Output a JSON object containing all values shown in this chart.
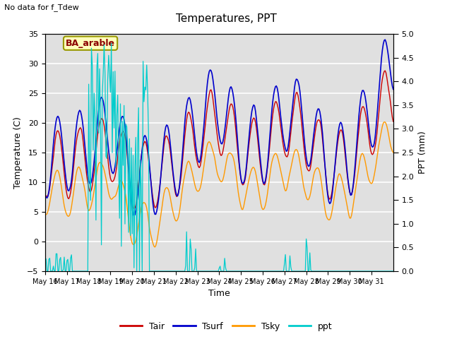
{
  "title": "Temperatures, PPT",
  "subtitle": "No data for f_Tdew",
  "site_label": "BA_arable",
  "xlabel": "Time",
  "ylabel_left": "Temperature (C)",
  "ylabel_right": "PPT (mm)",
  "ylim_left": [
    -5,
    35
  ],
  "ylim_right": [
    0.0,
    5.0
  ],
  "yticks_left": [
    -5,
    0,
    5,
    10,
    15,
    20,
    25,
    30,
    35
  ],
  "yticks_right": [
    0.0,
    0.5,
    1.0,
    1.5,
    2.0,
    2.5,
    3.0,
    3.5,
    4.0,
    4.5,
    5.0
  ],
  "color_tair": "#cc0000",
  "color_tsurf": "#0000cc",
  "color_tsky": "#ff9900",
  "color_ppt": "#00cccc",
  "bg_color": "#e0e0e0",
  "legend_entries": [
    "Tair",
    "Tsurf",
    "Tsky",
    "ppt"
  ]
}
